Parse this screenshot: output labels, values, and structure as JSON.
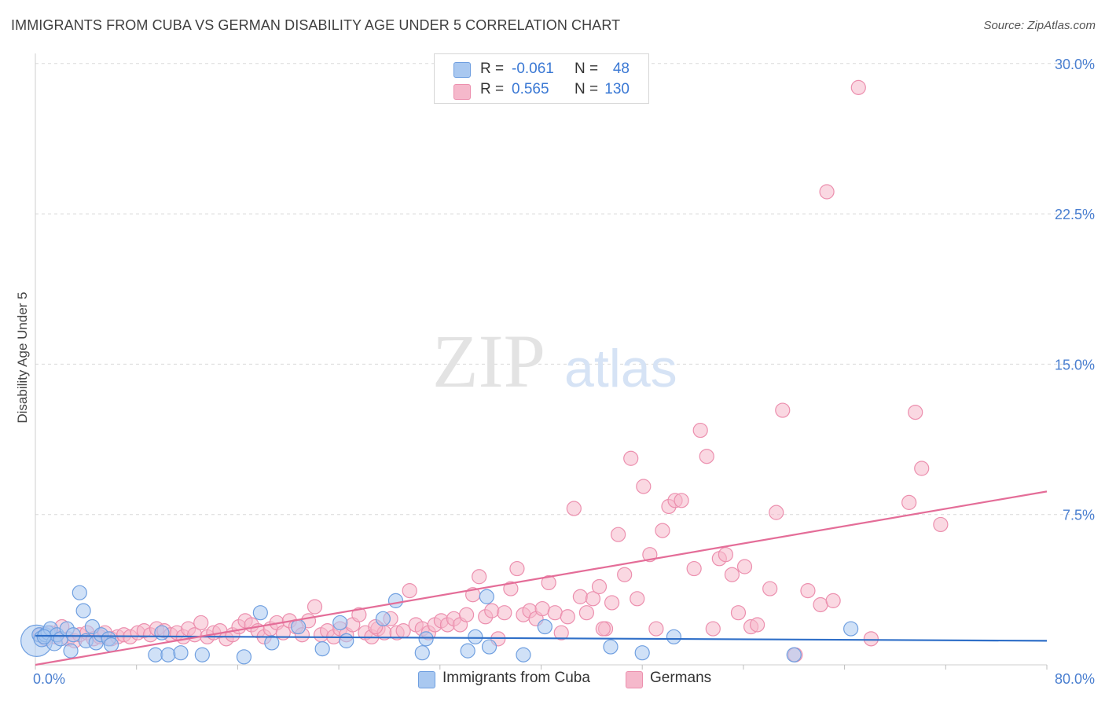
{
  "title": "IMMIGRANTS FROM CUBA VS GERMAN DISABILITY AGE UNDER 5 CORRELATION CHART",
  "source": "Source: ZipAtlas.com",
  "watermark": {
    "zip": "ZIP",
    "atlas": "atlas"
  },
  "legend": {
    "rows": [
      {
        "r_label": "R =",
        "r_value": "-0.061",
        "n_label": "N =",
        "n_value": "48"
      },
      {
        "r_label": "R =",
        "r_value": "0.565",
        "n_label": "N =",
        "n_value": "130"
      }
    ]
  },
  "bottom_legend": [
    "Immigrants from Cuba",
    "Germans"
  ],
  "colors": {
    "cuba_fill": "#a9c8f0",
    "cuba_stroke": "#6f9fe0",
    "cuba_line": "#2f6fc8",
    "german_fill": "#f5b8cb",
    "german_stroke": "#ec8fae",
    "german_line": "#e46d98",
    "tick_text": "#4a7fd0",
    "grid": "#d9d9d9"
  },
  "chart_data": {
    "type": "scatter",
    "title": "IMMIGRANTS FROM CUBA VS GERMAN DISABILITY AGE UNDER 5 CORRELATION CHART",
    "xlabel": "",
    "ylabel": "Disability Age Under 5",
    "xlim": [
      0,
      80
    ],
    "ylim": [
      0,
      30.5
    ],
    "x_tick_labels": [
      {
        "value": 0,
        "label": "0.0%"
      },
      {
        "value": 80,
        "label": "80.0%"
      }
    ],
    "y_tick_labels": [
      {
        "value": 7.5,
        "label": "7.5%"
      },
      {
        "value": 15,
        "label": "15.0%"
      },
      {
        "value": 22.5,
        "label": "22.5%"
      },
      {
        "value": 30,
        "label": "30.0%"
      }
    ],
    "grid": true,
    "legend_position": "top-center",
    "series": [
      {
        "name": "Immigrants from Cuba",
        "R": -0.061,
        "N": 48,
        "trend": [
          [
            0,
            1.45
          ],
          [
            80,
            1.2
          ]
        ],
        "points": [
          [
            0.1,
            1.2,
            20
          ],
          [
            0.3,
            1.5,
            9
          ],
          [
            0.5,
            1.3,
            10
          ],
          [
            0.8,
            1.5,
            9
          ],
          [
            1.0,
            1.6,
            9
          ],
          [
            1.2,
            1.8,
            9
          ],
          [
            1.5,
            1.1,
            10
          ],
          [
            1.7,
            1.5,
            9
          ],
          [
            2.0,
            1.3,
            9
          ],
          [
            2.5,
            1.8,
            9
          ],
          [
            3.0,
            1.5,
            9
          ],
          [
            2.8,
            0.7,
            9
          ],
          [
            3.5,
            3.6,
            9
          ],
          [
            3.8,
            2.7,
            9
          ],
          [
            4.5,
            1.9,
            9
          ],
          [
            4.0,
            1.2,
            9
          ],
          [
            4.8,
            1.1,
            9
          ],
          [
            5.2,
            1.5,
            9
          ],
          [
            5.8,
            1.3,
            9
          ],
          [
            6.0,
            1.0,
            9
          ],
          [
            9.5,
            0.5,
            9
          ],
          [
            10.0,
            1.6,
            9
          ],
          [
            10.5,
            0.5,
            9
          ],
          [
            11.5,
            0.6,
            9
          ],
          [
            13.2,
            0.5,
            9
          ],
          [
            16.5,
            0.4,
            9
          ],
          [
            17.8,
            2.6,
            9
          ],
          [
            18.7,
            1.1,
            9
          ],
          [
            20.8,
            1.9,
            9
          ],
          [
            22.7,
            0.8,
            9
          ],
          [
            24.1,
            2.1,
            9
          ],
          [
            24.6,
            1.2,
            9
          ],
          [
            27.5,
            2.3,
            9
          ],
          [
            28.5,
            3.2,
            9
          ],
          [
            30.6,
            0.6,
            9
          ],
          [
            30.9,
            1.3,
            9
          ],
          [
            34.2,
            0.7,
            9
          ],
          [
            34.8,
            1.4,
            9
          ],
          [
            35.7,
            3.4,
            9
          ],
          [
            35.9,
            0.9,
            9
          ],
          [
            38.6,
            0.5,
            9
          ],
          [
            40.3,
            1.9,
            9
          ],
          [
            45.5,
            0.9,
            9
          ],
          [
            48.0,
            0.6,
            9
          ],
          [
            50.5,
            1.4,
            9
          ],
          [
            60.0,
            0.5,
            9
          ],
          [
            64.5,
            1.8,
            9
          ],
          [
            0.7,
            1.4,
            9
          ]
        ]
      },
      {
        "name": "Germans",
        "R": 0.565,
        "N": 130,
        "trend": [
          [
            0,
            0
          ],
          [
            80,
            8.65
          ]
        ],
        "points": [
          [
            0.4,
            1.5,
            9
          ],
          [
            0.8,
            1.3,
            9
          ],
          [
            1.2,
            1.6,
            9
          ],
          [
            1.6,
            1.4,
            9
          ],
          [
            2.1,
            1.9,
            9
          ],
          [
            2.6,
            1.3,
            9
          ],
          [
            3.1,
            1.2,
            9
          ],
          [
            3.5,
            1.5,
            9
          ],
          [
            4.1,
            1.6,
            9
          ],
          [
            4.6,
            1.3,
            9
          ],
          [
            5.1,
            1.4,
            9
          ],
          [
            5.5,
            1.6,
            9
          ],
          [
            6.0,
            1.3,
            9
          ],
          [
            6.5,
            1.4,
            9
          ],
          [
            7.0,
            1.5,
            9
          ],
          [
            7.5,
            1.4,
            9
          ],
          [
            8.1,
            1.6,
            9
          ],
          [
            8.6,
            1.7,
            9
          ],
          [
            9.1,
            1.5,
            9
          ],
          [
            9.6,
            1.8,
            9
          ],
          [
            10.2,
            1.7,
            9
          ],
          [
            10.7,
            1.5,
            9
          ],
          [
            11.2,
            1.6,
            9
          ],
          [
            11.7,
            1.4,
            9
          ],
          [
            12.1,
            1.8,
            9
          ],
          [
            12.6,
            1.5,
            9
          ],
          [
            13.1,
            2.1,
            9
          ],
          [
            13.6,
            1.4,
            9
          ],
          [
            14.1,
            1.6,
            9
          ],
          [
            14.6,
            1.7,
            9
          ],
          [
            15.1,
            1.3,
            9
          ],
          [
            15.6,
            1.5,
            9
          ],
          [
            16.1,
            1.9,
            9
          ],
          [
            16.6,
            2.2,
            9
          ],
          [
            17.1,
            2.0,
            9
          ],
          [
            17.6,
            1.7,
            9
          ],
          [
            18.1,
            1.4,
            9
          ],
          [
            18.6,
            1.8,
            9
          ],
          [
            19.1,
            2.1,
            9
          ],
          [
            19.6,
            1.6,
            9
          ],
          [
            20.1,
            2.2,
            9
          ],
          [
            20.6,
            1.9,
            9
          ],
          [
            21.1,
            1.5,
            9
          ],
          [
            21.6,
            2.2,
            9
          ],
          [
            22.1,
            2.9,
            9
          ],
          [
            22.6,
            1.5,
            9
          ],
          [
            23.1,
            1.7,
            9
          ],
          [
            23.6,
            1.4,
            9
          ],
          [
            24.1,
            1.8,
            9
          ],
          [
            24.6,
            1.5,
            9
          ],
          [
            25.1,
            2.0,
            9
          ],
          [
            25.6,
            2.5,
            9
          ],
          [
            26.1,
            1.6,
            9
          ],
          [
            26.6,
            1.4,
            9
          ],
          [
            27.1,
            1.8,
            9
          ],
          [
            27.6,
            1.6,
            9
          ],
          [
            28.1,
            2.3,
            9
          ],
          [
            28.6,
            1.6,
            9
          ],
          [
            29.1,
            1.7,
            9
          ],
          [
            29.6,
            3.7,
            9
          ],
          [
            30.1,
            2.0,
            9
          ],
          [
            30.6,
            1.8,
            9
          ],
          [
            31.1,
            1.6,
            9
          ],
          [
            31.6,
            2.0,
            9
          ],
          [
            32.1,
            2.2,
            9
          ],
          [
            32.6,
            2.0,
            9
          ],
          [
            33.1,
            2.3,
            9
          ],
          [
            33.6,
            2.0,
            9
          ],
          [
            34.1,
            2.5,
            9
          ],
          [
            34.6,
            3.5,
            9
          ],
          [
            35.1,
            4.4,
            9
          ],
          [
            35.6,
            2.4,
            9
          ],
          [
            36.1,
            2.7,
            9
          ],
          [
            36.6,
            1.3,
            9
          ],
          [
            37.1,
            2.6,
            9
          ],
          [
            37.6,
            3.8,
            9
          ],
          [
            38.1,
            4.8,
            9
          ],
          [
            38.6,
            2.5,
            9
          ],
          [
            39.1,
            2.7,
            9
          ],
          [
            39.6,
            2.3,
            9
          ],
          [
            40.1,
            2.8,
            9
          ],
          [
            40.6,
            4.1,
            9
          ],
          [
            41.1,
            2.6,
            9
          ],
          [
            41.6,
            1.6,
            9
          ],
          [
            42.1,
            2.4,
            9
          ],
          [
            42.6,
            7.8,
            9
          ],
          [
            43.1,
            3.4,
            9
          ],
          [
            43.6,
            2.6,
            9
          ],
          [
            44.1,
            3.3,
            9
          ],
          [
            44.6,
            3.9,
            9
          ],
          [
            45.1,
            1.8,
            9
          ],
          [
            45.6,
            3.1,
            9
          ],
          [
            46.1,
            6.5,
            9
          ],
          [
            46.6,
            4.5,
            9
          ],
          [
            47.1,
            10.3,
            9
          ],
          [
            47.6,
            3.3,
            9
          ],
          [
            48.1,
            8.9,
            9
          ],
          [
            48.6,
            5.5,
            9
          ],
          [
            49.1,
            1.8,
            9
          ],
          [
            49.6,
            6.7,
            9
          ],
          [
            50.1,
            7.9,
            9
          ],
          [
            50.6,
            8.2,
            9
          ],
          [
            51.1,
            8.2,
            9
          ],
          [
            52.1,
            4.8,
            9
          ],
          [
            52.6,
            11.7,
            9
          ],
          [
            53.1,
            10.4,
            9
          ],
          [
            54.1,
            5.3,
            9
          ],
          [
            54.6,
            5.5,
            9
          ],
          [
            55.1,
            4.5,
            9
          ],
          [
            55.6,
            2.6,
            9
          ],
          [
            56.1,
            4.9,
            9
          ],
          [
            56.6,
            1.9,
            9
          ],
          [
            57.1,
            2.0,
            9
          ],
          [
            58.1,
            3.8,
            9
          ],
          [
            58.6,
            7.6,
            9
          ],
          [
            59.1,
            12.7,
            9
          ],
          [
            60.1,
            0.5,
            9
          ],
          [
            61.1,
            3.7,
            9
          ],
          [
            62.1,
            3.0,
            9
          ],
          [
            62.6,
            23.6,
            9
          ],
          [
            63.1,
            3.2,
            9
          ],
          [
            65.1,
            28.8,
            9
          ],
          [
            66.1,
            1.3,
            9
          ],
          [
            69.1,
            8.1,
            9
          ],
          [
            69.6,
            12.6,
            9
          ],
          [
            70.1,
            9.8,
            9
          ],
          [
            71.6,
            7.0,
            9
          ],
          [
            53.6,
            1.8,
            9
          ],
          [
            44.9,
            1.8,
            9
          ],
          [
            26.9,
            1.9,
            9
          ]
        ]
      }
    ]
  }
}
